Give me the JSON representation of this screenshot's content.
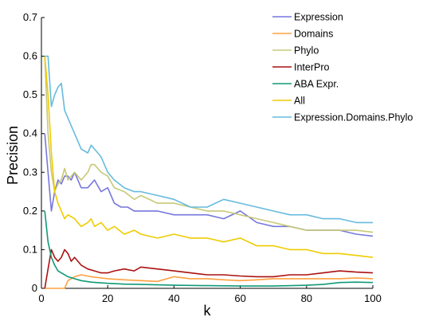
{
  "chart_data": {
    "type": "line",
    "xlabel": "k",
    "ylabel": "Precision",
    "xlim": [
      0,
      100
    ],
    "ylim": [
      0,
      0.7
    ],
    "xticks": [
      "0",
      "20",
      "40",
      "60",
      "80",
      "100"
    ],
    "yticks": [
      "0",
      "0.1",
      "0.2",
      "0.3",
      "0.4",
      "0.5",
      "0.6",
      "0.7"
    ],
    "grid": false,
    "legend_position": "top-right",
    "series": [
      {
        "name": "Expression",
        "color": "#7777dd",
        "points": [
          [
            1,
            0.4
          ],
          [
            2,
            0.3
          ],
          [
            3,
            0.2
          ],
          [
            4,
            0.25
          ],
          [
            5,
            0.28
          ],
          [
            6,
            0.27
          ],
          [
            7,
            0.29
          ],
          [
            8,
            0.29
          ],
          [
            9,
            0.28
          ],
          [
            10,
            0.3
          ],
          [
            12,
            0.26
          ],
          [
            14,
            0.26
          ],
          [
            16,
            0.28
          ],
          [
            18,
            0.25
          ],
          [
            20,
            0.26
          ],
          [
            22,
            0.22
          ],
          [
            24,
            0.21
          ],
          [
            26,
            0.21
          ],
          [
            28,
            0.2
          ],
          [
            30,
            0.2
          ],
          [
            35,
            0.2
          ],
          [
            40,
            0.19
          ],
          [
            45,
            0.19
          ],
          [
            50,
            0.19
          ],
          [
            55,
            0.18
          ],
          [
            60,
            0.2
          ],
          [
            65,
            0.17
          ],
          [
            70,
            0.16
          ],
          [
            75,
            0.16
          ],
          [
            80,
            0.15
          ],
          [
            85,
            0.15
          ],
          [
            90,
            0.15
          ],
          [
            95,
            0.14
          ],
          [
            100,
            0.135
          ]
        ]
      },
      {
        "name": "Domains",
        "color": "#ffa040",
        "points": [
          [
            1,
            0.0
          ],
          [
            3,
            0.0
          ],
          [
            5,
            0.0
          ],
          [
            7,
            0.0
          ],
          [
            8,
            0.02
          ],
          [
            10,
            0.03
          ],
          [
            12,
            0.035
          ],
          [
            15,
            0.03
          ],
          [
            20,
            0.025
          ],
          [
            25,
            0.022
          ],
          [
            30,
            0.02
          ],
          [
            35,
            0.018
          ],
          [
            40,
            0.03
          ],
          [
            45,
            0.025
          ],
          [
            50,
            0.025
          ],
          [
            55,
            0.022
          ],
          [
            60,
            0.02
          ],
          [
            65,
            0.022
          ],
          [
            70,
            0.025
          ],
          [
            75,
            0.025
          ],
          [
            80,
            0.025
          ],
          [
            85,
            0.025
          ],
          [
            90,
            0.025
          ],
          [
            95,
            0.027
          ],
          [
            100,
            0.025
          ]
        ]
      },
      {
        "name": "Phylo",
        "color": "#c8c878",
        "points": [
          [
            1,
            0.6
          ],
          [
            2,
            0.4
          ],
          [
            3,
            0.3
          ],
          [
            4,
            0.25
          ],
          [
            5,
            0.27
          ],
          [
            6,
            0.28
          ],
          [
            7,
            0.31
          ],
          [
            8,
            0.28
          ],
          [
            10,
            0.3
          ],
          [
            12,
            0.28
          ],
          [
            14,
            0.3
          ],
          [
            15,
            0.32
          ],
          [
            16,
            0.32
          ],
          [
            18,
            0.3
          ],
          [
            20,
            0.29
          ],
          [
            22,
            0.26
          ],
          [
            25,
            0.25
          ],
          [
            28,
            0.23
          ],
          [
            30,
            0.24
          ],
          [
            35,
            0.22
          ],
          [
            40,
            0.22
          ],
          [
            45,
            0.21
          ],
          [
            50,
            0.2
          ],
          [
            55,
            0.2
          ],
          [
            60,
            0.19
          ],
          [
            65,
            0.18
          ],
          [
            70,
            0.17
          ],
          [
            75,
            0.16
          ],
          [
            80,
            0.15
          ],
          [
            85,
            0.15
          ],
          [
            90,
            0.15
          ],
          [
            95,
            0.15
          ],
          [
            100,
            0.145
          ]
        ]
      },
      {
        "name": "InterPro",
        "color": "#aa1111",
        "points": [
          [
            1,
            0.0
          ],
          [
            2,
            0.05
          ],
          [
            3,
            0.1
          ],
          [
            4,
            0.08
          ],
          [
            5,
            0.07
          ],
          [
            6,
            0.08
          ],
          [
            7,
            0.1
          ],
          [
            8,
            0.09
          ],
          [
            9,
            0.07
          ],
          [
            10,
            0.08
          ],
          [
            12,
            0.06
          ],
          [
            14,
            0.05
          ],
          [
            16,
            0.045
          ],
          [
            18,
            0.04
          ],
          [
            20,
            0.04
          ],
          [
            22,
            0.045
          ],
          [
            25,
            0.05
          ],
          [
            28,
            0.045
          ],
          [
            30,
            0.055
          ],
          [
            35,
            0.05
          ],
          [
            40,
            0.045
          ],
          [
            45,
            0.04
          ],
          [
            50,
            0.035
          ],
          [
            55,
            0.035
          ],
          [
            60,
            0.032
          ],
          [
            65,
            0.03
          ],
          [
            70,
            0.03
          ],
          [
            75,
            0.035
          ],
          [
            80,
            0.035
          ],
          [
            85,
            0.04
          ],
          [
            90,
            0.045
          ],
          [
            95,
            0.042
          ],
          [
            100,
            0.04
          ]
        ]
      },
      {
        "name": "ABA Expr.",
        "color": "#119977",
        "points": [
          [
            1,
            0.2
          ],
          [
            2,
            0.12
          ],
          [
            3,
            0.08
          ],
          [
            4,
            0.06
          ],
          [
            5,
            0.045
          ],
          [
            6,
            0.04
          ],
          [
            8,
            0.03
          ],
          [
            10,
            0.025
          ],
          [
            12,
            0.02
          ],
          [
            15,
            0.016
          ],
          [
            20,
            0.013
          ],
          [
            25,
            0.011
          ],
          [
            30,
            0.01
          ],
          [
            40,
            0.008
          ],
          [
            50,
            0.007
          ],
          [
            60,
            0.006
          ],
          [
            70,
            0.006
          ],
          [
            80,
            0.008
          ],
          [
            85,
            0.01
          ],
          [
            90,
            0.015
          ],
          [
            95,
            0.016
          ],
          [
            100,
            0.015
          ]
        ]
      },
      {
        "name": "All",
        "color": "#eecc00",
        "points": [
          [
            1,
            0.6
          ],
          [
            2,
            0.5
          ],
          [
            3,
            0.35
          ],
          [
            4,
            0.25
          ],
          [
            5,
            0.22
          ],
          [
            6,
            0.2
          ],
          [
            7,
            0.18
          ],
          [
            8,
            0.19
          ],
          [
            10,
            0.18
          ],
          [
            12,
            0.16
          ],
          [
            14,
            0.17
          ],
          [
            15,
            0.18
          ],
          [
            16,
            0.16
          ],
          [
            18,
            0.17
          ],
          [
            20,
            0.15
          ],
          [
            22,
            0.16
          ],
          [
            25,
            0.14
          ],
          [
            28,
            0.15
          ],
          [
            30,
            0.14
          ],
          [
            35,
            0.13
          ],
          [
            40,
            0.14
          ],
          [
            45,
            0.13
          ],
          [
            50,
            0.13
          ],
          [
            55,
            0.12
          ],
          [
            60,
            0.13
          ],
          [
            65,
            0.11
          ],
          [
            70,
            0.11
          ],
          [
            75,
            0.1
          ],
          [
            80,
            0.1
          ],
          [
            85,
            0.09
          ],
          [
            90,
            0.09
          ],
          [
            95,
            0.085
          ],
          [
            100,
            0.08
          ]
        ]
      },
      {
        "name": "Expression.Domains.Phylo",
        "color": "#66bbdd",
        "points": [
          [
            1,
            0.6
          ],
          [
            2,
            0.6
          ],
          [
            3,
            0.47
          ],
          [
            4,
            0.5
          ],
          [
            5,
            0.52
          ],
          [
            6,
            0.53
          ],
          [
            7,
            0.46
          ],
          [
            8,
            0.44
          ],
          [
            10,
            0.4
          ],
          [
            12,
            0.36
          ],
          [
            14,
            0.35
          ],
          [
            15,
            0.37
          ],
          [
            16,
            0.36
          ],
          [
            18,
            0.34
          ],
          [
            20,
            0.3
          ],
          [
            22,
            0.28
          ],
          [
            25,
            0.26
          ],
          [
            28,
            0.25
          ],
          [
            30,
            0.25
          ],
          [
            35,
            0.24
          ],
          [
            40,
            0.23
          ],
          [
            45,
            0.21
          ],
          [
            50,
            0.21
          ],
          [
            55,
            0.23
          ],
          [
            60,
            0.22
          ],
          [
            65,
            0.21
          ],
          [
            70,
            0.2
          ],
          [
            75,
            0.19
          ],
          [
            80,
            0.19
          ],
          [
            85,
            0.18
          ],
          [
            90,
            0.18
          ],
          [
            95,
            0.17
          ],
          [
            100,
            0.17
          ]
        ]
      }
    ]
  }
}
